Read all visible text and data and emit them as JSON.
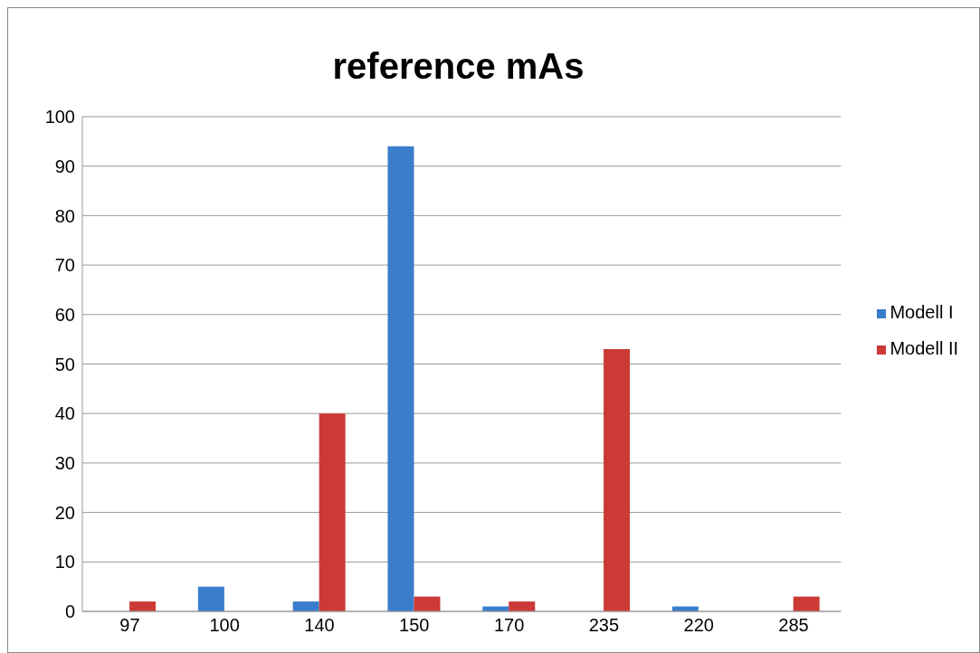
{
  "chart_data": {
    "type": "bar",
    "title": "reference mAs",
    "categories": [
      "97",
      "100",
      "140",
      "150",
      "170",
      "235",
      "220",
      "285"
    ],
    "series": [
      {
        "name": "Modell I",
        "color": "#3a7dcc",
        "values": [
          0,
          5,
          2,
          94,
          1,
          0,
          1,
          0
        ]
      },
      {
        "name": "Modell II",
        "color": "#cc3a36",
        "values": [
          2,
          0,
          40,
          3,
          2,
          53,
          0,
          3
        ]
      }
    ],
    "ylim": [
      0,
      100
    ],
    "yticks": [
      0,
      10,
      20,
      30,
      40,
      50,
      60,
      70,
      80,
      90,
      100
    ],
    "grid": "y",
    "legend": "right"
  }
}
